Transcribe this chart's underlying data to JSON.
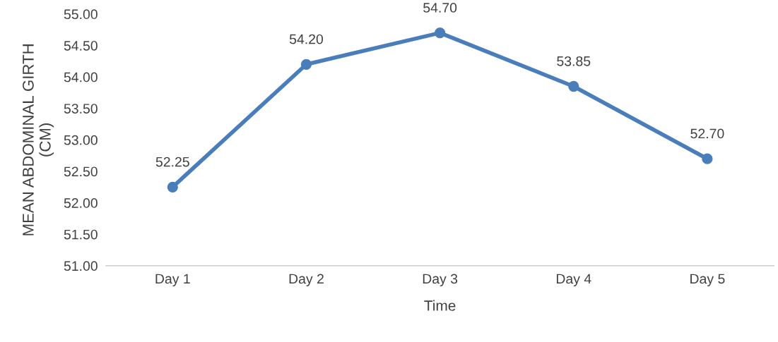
{
  "chart_data": {
    "type": "line",
    "xlabel": "Time",
    "ylabel": "MEAN ABDOMINAL GIRTH\n(CM)",
    "categories": [
      "Day 1",
      "Day 2",
      "Day 3",
      "Day 4",
      "Day 5"
    ],
    "series": [
      {
        "color": "#4a7ebb",
        "values": [
          52.25,
          54.2,
          54.7,
          53.85,
          52.7
        ],
        "value_labels": [
          "52.25",
          "54.20",
          "54.70",
          "53.85",
          "52.70"
        ]
      }
    ],
    "ylim": [
      51,
      55
    ],
    "yticks": [
      {
        "value": 51,
        "label": "51.00"
      },
      {
        "value": 51.5,
        "label": "51.50"
      },
      {
        "value": 52,
        "label": "52.00"
      },
      {
        "value": 52.5,
        "label": "52.50"
      },
      {
        "value": 53,
        "label": "53.00"
      },
      {
        "value": 53.5,
        "label": "53.50"
      },
      {
        "value": 54,
        "label": "54.00"
      },
      {
        "value": 54.5,
        "label": "54.50"
      },
      {
        "value": 55,
        "label": "55.00"
      }
    ],
    "grid": false,
    "legend": false,
    "marker": "circle",
    "line_style": "solid"
  }
}
